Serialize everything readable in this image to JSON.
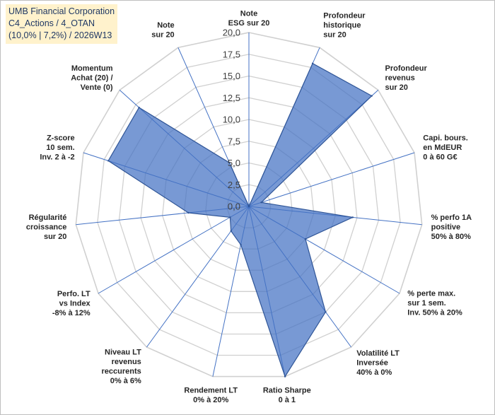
{
  "title": {
    "line1": "UMB Financial Corporation",
    "line2": "C4_Actions / 4_OTAN",
    "line3": "(10,0% | 7,2%) / 2026W13"
  },
  "chart_data": {
    "type": "radar",
    "range": [
      0,
      20
    ],
    "ticks": [
      "0,0",
      "2,5",
      "5,0",
      "7,5",
      "10,0",
      "12,5",
      "15,0",
      "17,5",
      "20,0"
    ],
    "series": [
      {
        "name": "UMB Financial Corporation",
        "color": "#4472c4",
        "values": [
          0,
          18.0,
          19.0,
          1.5,
          12.0,
          7.5,
          15.0,
          20.0,
          4.5,
          3.5,
          2.5,
          7.0,
          17.0,
          17.0,
          5.5
        ]
      }
    ],
    "axes": [
      {
        "lines": [
          "Note",
          "ESG sur 20"
        ]
      },
      {
        "lines": [
          "Profondeur",
          "historique",
          "sur 20"
        ]
      },
      {
        "lines": [
          "Profondeur",
          "revenus",
          "sur 20"
        ]
      },
      {
        "lines": [
          "Capi. bours.",
          "en MdEUR",
          "0 à 60 G€"
        ]
      },
      {
        "lines": [
          "% perfo 1A",
          "positive",
          "50% à 80%"
        ]
      },
      {
        "lines": [
          "% perte max.",
          "sur 1 sem.",
          "Inv. 50% à 20%"
        ]
      },
      {
        "lines": [
          "Volatilité LT",
          "Inversée",
          "40% à 0%"
        ]
      },
      {
        "lines": [
          "Ratio Sharpe",
          "0 à 1"
        ]
      },
      {
        "lines": [
          "Rendement LT",
          "0% à 20%"
        ]
      },
      {
        "lines": [
          "Niveau LT",
          "revenus",
          "reccurents",
          "0% à 6%"
        ]
      },
      {
        "lines": [
          "Perfo. LT",
          "vs Index",
          "-8% à 12%"
        ]
      },
      {
        "lines": [
          "Régularité",
          "croissance",
          "sur 20"
        ]
      },
      {
        "lines": [
          "Z-score",
          "10 sem.",
          "Inv. 2 à -2"
        ]
      },
      {
        "lines": [
          "Momentum",
          "Achat (20) /",
          "Vente (0)"
        ]
      },
      {
        "lines": [
          "Note",
          "sur 20"
        ]
      }
    ]
  }
}
